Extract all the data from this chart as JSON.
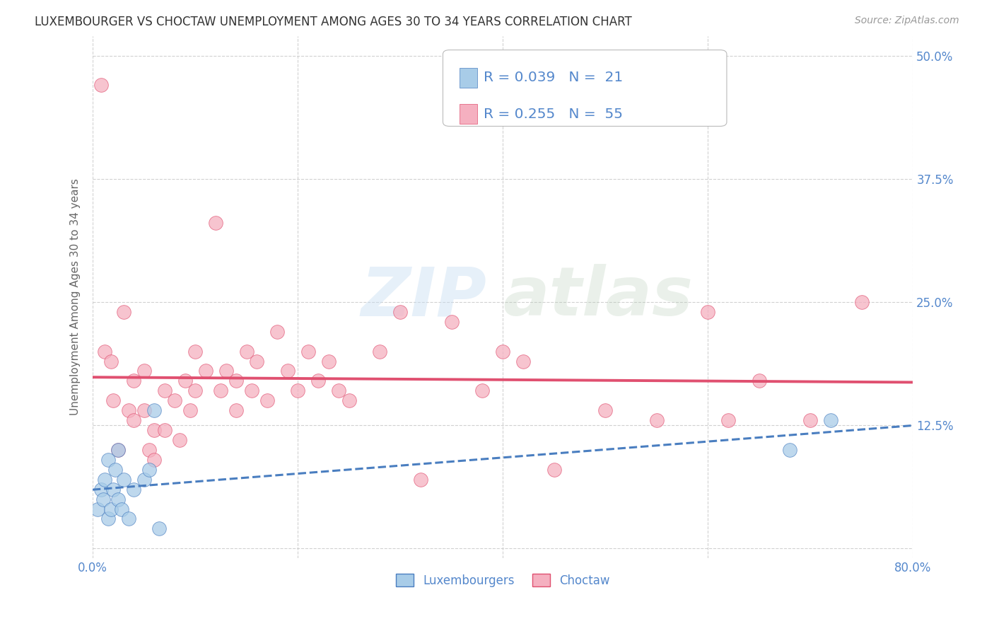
{
  "title": "LUXEMBOURGER VS CHOCTAW UNEMPLOYMENT AMONG AGES 30 TO 34 YEARS CORRELATION CHART",
  "source": "Source: ZipAtlas.com",
  "ylabel": "Unemployment Among Ages 30 to 34 years",
  "xlim": [
    0.0,
    0.8
  ],
  "ylim": [
    -0.01,
    0.52
  ],
  "color_lux": "#a8cce8",
  "color_choctaw": "#f5b0c0",
  "color_lux_line": "#4a7ec0",
  "color_choctaw_line": "#e05070",
  "color_axis": "#5588cc",
  "background": "#ffffff",
  "lux_x": [
    0.005,
    0.008,
    0.01,
    0.012,
    0.015,
    0.015,
    0.018,
    0.02,
    0.022,
    0.025,
    0.025,
    0.028,
    0.03,
    0.035,
    0.04,
    0.05,
    0.055,
    0.06,
    0.065,
    0.68,
    0.72
  ],
  "lux_y": [
    0.04,
    0.06,
    0.05,
    0.07,
    0.03,
    0.09,
    0.04,
    0.06,
    0.08,
    0.05,
    0.1,
    0.04,
    0.07,
    0.03,
    0.06,
    0.07,
    0.08,
    0.14,
    0.02,
    0.1,
    0.13
  ],
  "choctaw_x": [
    0.008,
    0.012,
    0.018,
    0.02,
    0.025,
    0.03,
    0.035,
    0.04,
    0.04,
    0.05,
    0.05,
    0.055,
    0.06,
    0.06,
    0.07,
    0.07,
    0.08,
    0.085,
    0.09,
    0.095,
    0.1,
    0.1,
    0.11,
    0.12,
    0.125,
    0.13,
    0.14,
    0.14,
    0.15,
    0.155,
    0.16,
    0.17,
    0.18,
    0.19,
    0.2,
    0.21,
    0.22,
    0.23,
    0.24,
    0.25,
    0.28,
    0.3,
    0.32,
    0.35,
    0.38,
    0.4,
    0.42,
    0.45,
    0.5,
    0.55,
    0.6,
    0.62,
    0.65,
    0.7,
    0.75
  ],
  "choctaw_y": [
    0.47,
    0.2,
    0.19,
    0.15,
    0.1,
    0.24,
    0.14,
    0.17,
    0.13,
    0.18,
    0.14,
    0.1,
    0.12,
    0.09,
    0.16,
    0.12,
    0.15,
    0.11,
    0.17,
    0.14,
    0.2,
    0.16,
    0.18,
    0.33,
    0.16,
    0.18,
    0.17,
    0.14,
    0.2,
    0.16,
    0.19,
    0.15,
    0.22,
    0.18,
    0.16,
    0.2,
    0.17,
    0.19,
    0.16,
    0.15,
    0.2,
    0.24,
    0.07,
    0.23,
    0.16,
    0.2,
    0.19,
    0.08,
    0.14,
    0.13,
    0.24,
    0.13,
    0.17,
    0.13,
    0.25
  ]
}
